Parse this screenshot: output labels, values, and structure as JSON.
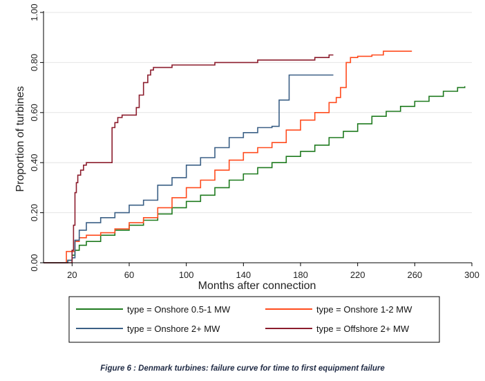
{
  "caption": "Figure 6 : Denmark turbines: failure curve for time to first equipment failure",
  "chart_data": {
    "type": "line",
    "step": true,
    "title": "",
    "xlabel": "Months after connection",
    "ylabel": "Proportion of turbines",
    "xlim": [
      0,
      300
    ],
    "ylim": [
      0,
      1
    ],
    "x_ticks": [
      20,
      60,
      100,
      140,
      180,
      220,
      260,
      300
    ],
    "y_ticks": [
      0,
      0.2,
      0.4,
      0.6,
      0.8,
      1.0
    ],
    "x_tick_labels": [
      "20",
      "60",
      "100",
      "140",
      "180",
      "220",
      "260",
      "300"
    ],
    "y_tick_labels": [
      "0.00",
      "0.20",
      "0.40",
      "0.60",
      "0.80",
      "1.00"
    ],
    "grid": true,
    "legend_position": "bottom",
    "series": [
      {
        "name": "type = Onshore 0.5-1 MW",
        "color": "#1e7a1e",
        "x": [
          0,
          15,
          17,
          20,
          22,
          25,
          30,
          40,
          50,
          60,
          70,
          80,
          90,
          100,
          110,
          120,
          130,
          140,
          150,
          160,
          170,
          180,
          190,
          200,
          210,
          220,
          230,
          240,
          250,
          260,
          270,
          280,
          290,
          295
        ],
        "y": [
          0,
          0,
          0.01,
          0.03,
          0.05,
          0.07,
          0.085,
          0.11,
          0.13,
          0.15,
          0.17,
          0.195,
          0.22,
          0.245,
          0.27,
          0.3,
          0.33,
          0.355,
          0.38,
          0.4,
          0.425,
          0.445,
          0.47,
          0.5,
          0.525,
          0.555,
          0.585,
          0.605,
          0.625,
          0.645,
          0.665,
          0.685,
          0.7,
          0.705
        ]
      },
      {
        "name": "type = Onshore 1-2 MW",
        "color": "#ff4a1c",
        "x": [
          0,
          15,
          16,
          20,
          22,
          25,
          30,
          40,
          50,
          60,
          70,
          80,
          90,
          100,
          110,
          120,
          130,
          140,
          150,
          160,
          170,
          180,
          190,
          200,
          205,
          208,
          210,
          212,
          215,
          220,
          225,
          230,
          238,
          245,
          250,
          258
        ],
        "y": [
          0,
          0,
          0.045,
          0.045,
          0.085,
          0.1,
          0.11,
          0.12,
          0.135,
          0.16,
          0.18,
          0.22,
          0.26,
          0.3,
          0.33,
          0.37,
          0.41,
          0.44,
          0.46,
          0.48,
          0.53,
          0.57,
          0.6,
          0.64,
          0.66,
          0.7,
          0.7,
          0.8,
          0.82,
          0.825,
          0.825,
          0.83,
          0.845,
          0.845,
          0.845,
          0.845
        ]
      },
      {
        "name": "type = Onshore 2+ MW",
        "color": "#3a5f85",
        "x": [
          0,
          15,
          17,
          20,
          22,
          25,
          30,
          40,
          50,
          60,
          70,
          80,
          90,
          100,
          110,
          120,
          130,
          140,
          150,
          160,
          163,
          165,
          168,
          172,
          180,
          190,
          200,
          203
        ],
        "y": [
          0,
          0,
          0.01,
          0.02,
          0.09,
          0.13,
          0.16,
          0.18,
          0.2,
          0.23,
          0.25,
          0.31,
          0.34,
          0.39,
          0.42,
          0.46,
          0.5,
          0.52,
          0.54,
          0.545,
          0.545,
          0.65,
          0.65,
          0.75,
          0.75,
          0.75,
          0.75,
          0.75
        ]
      },
      {
        "name": "type = Offshore 2+ MW",
        "color": "#8b1c2c",
        "x": [
          0,
          15,
          20,
          21,
          22,
          23,
          24,
          26,
          28,
          30,
          35,
          40,
          45,
          47,
          48,
          50,
          52,
          55,
          60,
          63,
          65,
          67,
          70,
          73,
          75,
          77,
          80,
          85,
          90,
          100,
          110,
          120,
          140,
          150,
          160,
          170,
          180,
          190,
          200,
          203
        ],
        "y": [
          0,
          0,
          0.05,
          0.15,
          0.28,
          0.32,
          0.35,
          0.37,
          0.39,
          0.4,
          0.4,
          0.4,
          0.4,
          0.4,
          0.54,
          0.56,
          0.58,
          0.59,
          0.59,
          0.59,
          0.62,
          0.67,
          0.72,
          0.75,
          0.77,
          0.78,
          0.78,
          0.78,
          0.79,
          0.79,
          0.79,
          0.8,
          0.8,
          0.81,
          0.81,
          0.81,
          0.81,
          0.82,
          0.83,
          0.83
        ]
      }
    ]
  }
}
